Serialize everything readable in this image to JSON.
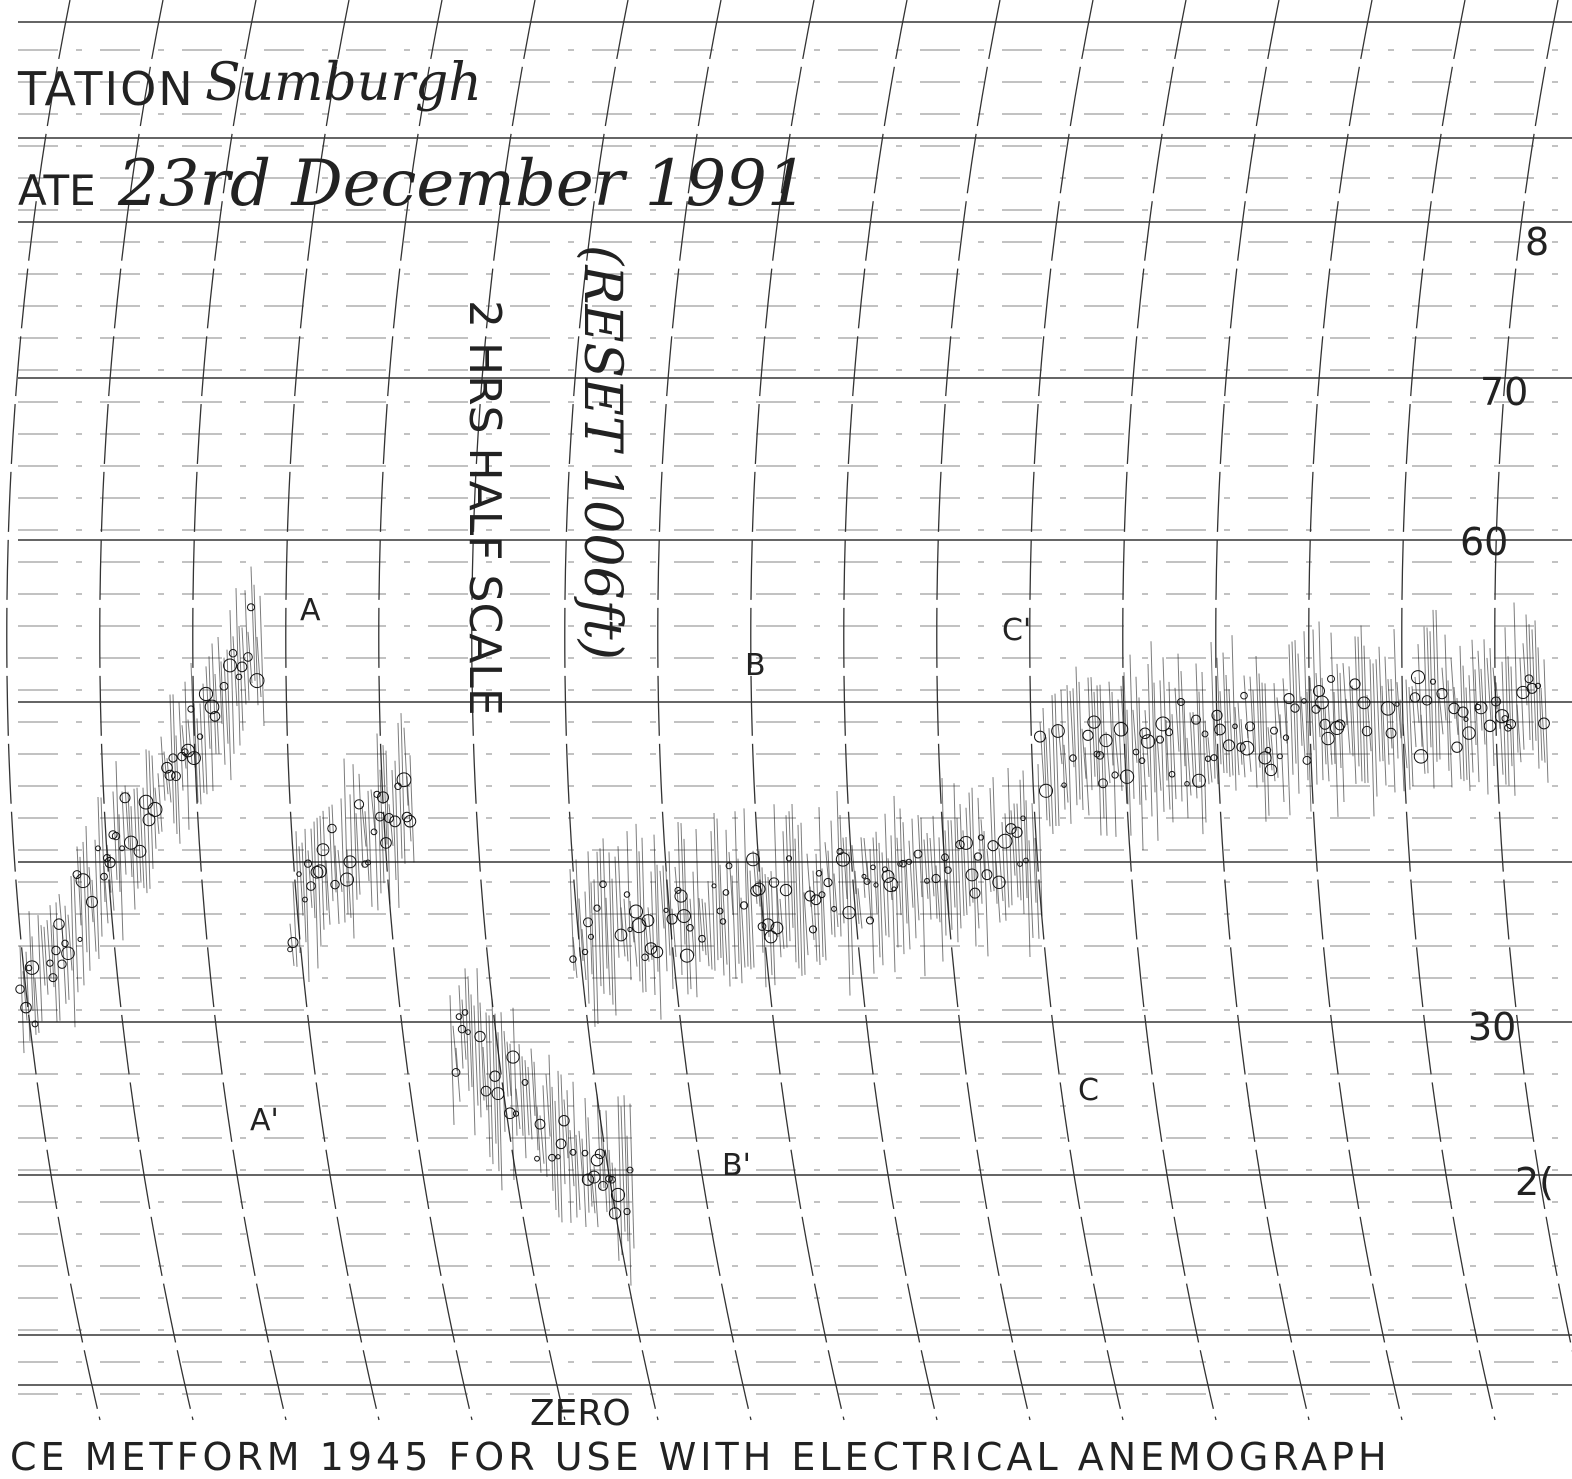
{
  "header": {
    "station_label": "TATION",
    "station": "Sumburgh",
    "date_label": "ATE",
    "date": "23rd December 1991"
  },
  "annotations": {
    "reset": "(RESET 1006ft)",
    "scale": "2 HRS HALF SCALE",
    "markers": [
      "A",
      "A'",
      "B",
      "B'",
      "C",
      "C'"
    ]
  },
  "scale_labels": [
    "8",
    "70",
    "60",
    "30",
    "2(",
    "ZERO"
  ],
  "footer": "CE METFORM 1945 FOR USE WITH ELECTRICAL ANEMOGRAPH"
}
